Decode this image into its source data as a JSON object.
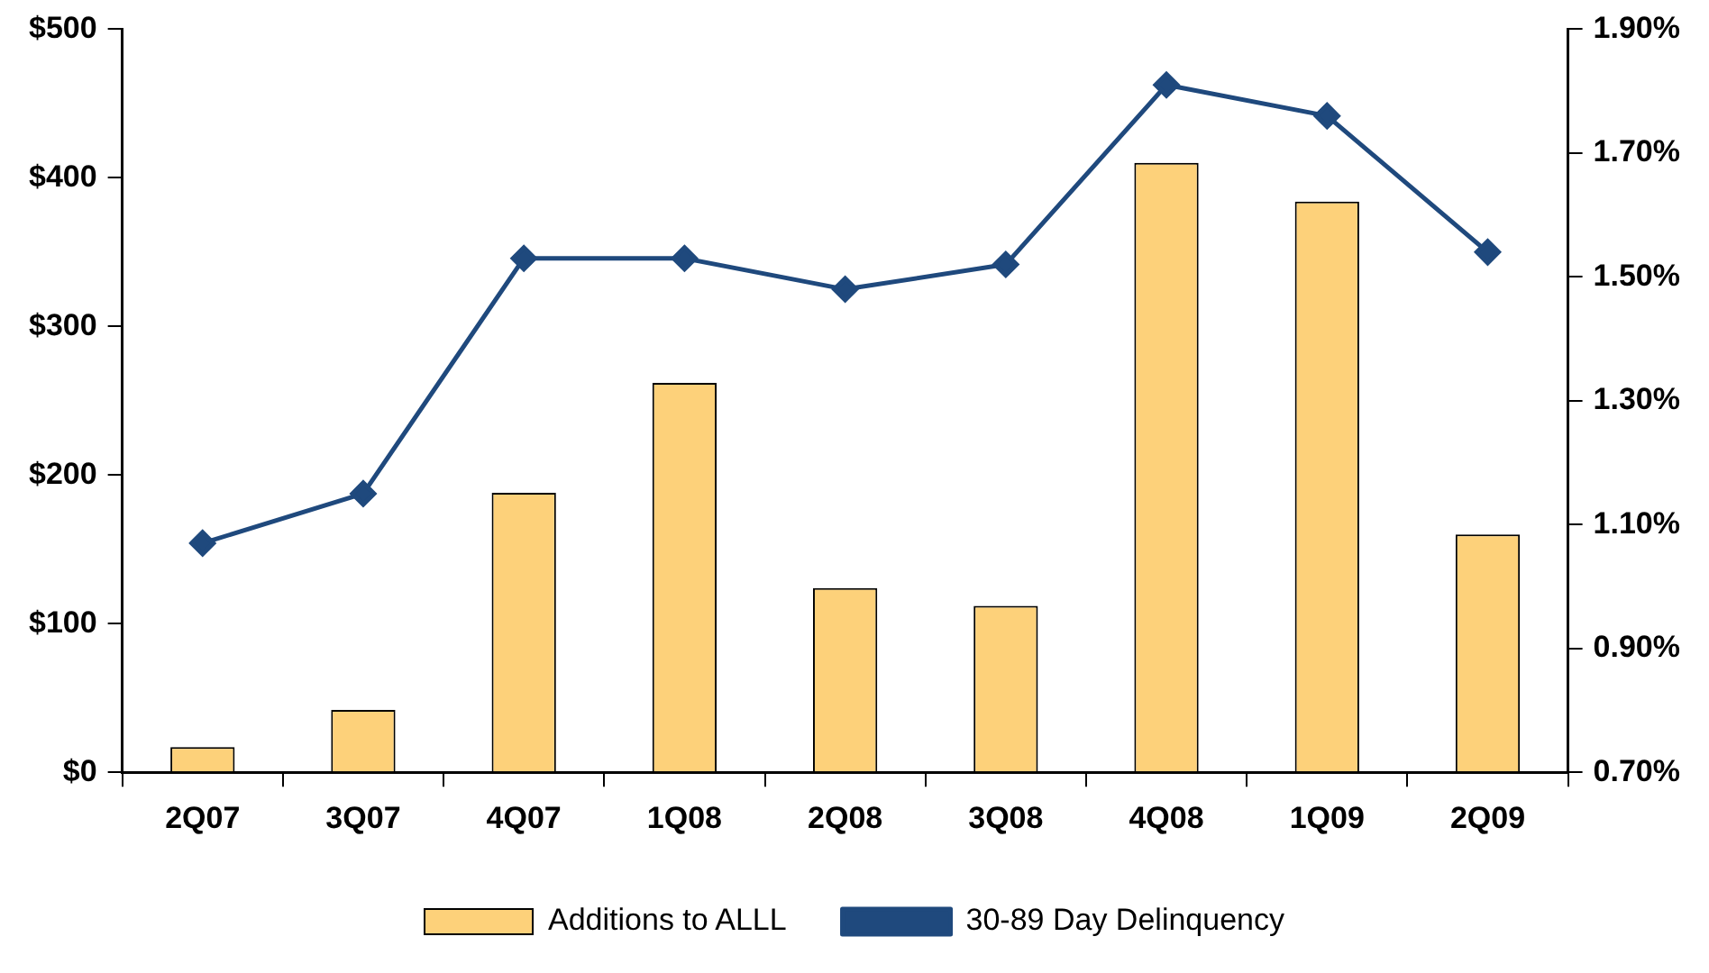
{
  "chart_data": {
    "type": "bar",
    "categories": [
      "2Q07",
      "3Q07",
      "4Q07",
      "1Q08",
      "2Q08",
      "3Q08",
      "4Q08",
      "1Q09",
      "2Q09"
    ],
    "series": [
      {
        "name": "Additions to ALLL",
        "color": "#fdd17a",
        "values": [
          17,
          42,
          188,
          262,
          124,
          112,
          410,
          384,
          160
        ]
      },
      {
        "name": "30-89 Day Delinquency",
        "type": "line",
        "axis": "y2",
        "color": "#1f497d",
        "marker": "diamond",
        "values": [
          1.07,
          1.15,
          1.53,
          1.53,
          1.48,
          1.52,
          1.81,
          1.76,
          1.54
        ]
      }
    ],
    "ylim": [
      0,
      500
    ],
    "yticks": [
      {
        "value": 0,
        "label": "$0"
      },
      {
        "value": 100,
        "label": "$100"
      },
      {
        "value": 200,
        "label": "$200"
      },
      {
        "value": 300,
        "label": "$300"
      },
      {
        "value": 400,
        "label": "$400"
      },
      {
        "value": 500,
        "label": "$500"
      }
    ],
    "y2lim": [
      0.7,
      1.9
    ],
    "y2ticks": [
      {
        "value": 0.7,
        "label": "0.70%"
      },
      {
        "value": 0.9,
        "label": "0.90%"
      },
      {
        "value": 1.1,
        "label": "1.10%"
      },
      {
        "value": 1.3,
        "label": "1.30%"
      },
      {
        "value": 1.5,
        "label": "1.50%"
      },
      {
        "value": 1.7,
        "label": "1.70%"
      },
      {
        "value": 1.9,
        "label": "1.90%"
      }
    ],
    "grid": false,
    "legend": "bottom"
  }
}
